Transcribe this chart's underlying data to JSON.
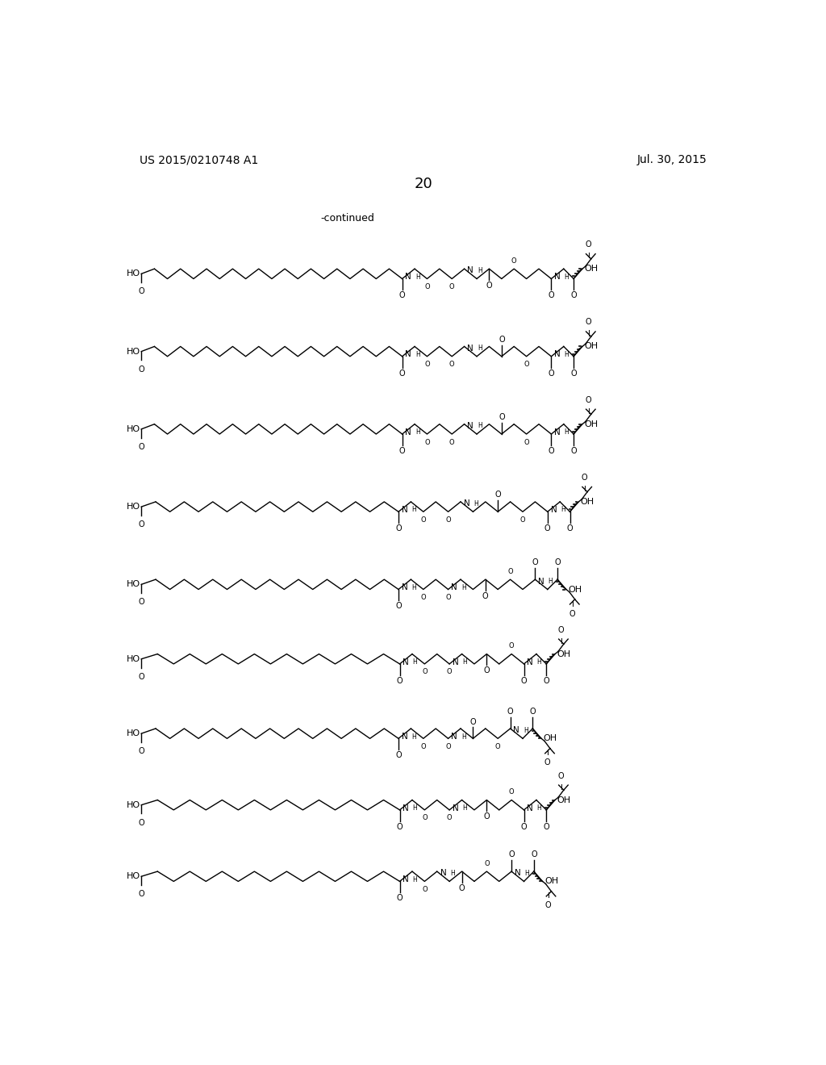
{
  "header_left": "US 2015/0210748 A1",
  "header_right": "Jul. 30, 2015",
  "page_number": "20",
  "continued_label": "-continued",
  "background_color": "#ffffff",
  "text_color": "#000000",
  "font_size_header": 10,
  "font_size_page": 13,
  "font_size_label": 9,
  "font_size_atom": 8.5,
  "n_structures": 9,
  "line_width": 1.0,
  "fa_chain_segs": [
    20,
    20,
    20,
    18,
    18,
    16,
    18,
    16,
    16
  ],
  "peg_variants": [
    {
      "peg1": 4,
      "peg2": 4,
      "spacer": 2
    },
    {
      "peg1": 4,
      "peg2": 3,
      "spacer": 3
    },
    {
      "peg1": 4,
      "peg2": 3,
      "spacer": 3
    },
    {
      "peg1": 4,
      "peg2": 3,
      "spacer": 3
    },
    {
      "peg1": 3,
      "peg2": 3,
      "spacer": 3
    },
    {
      "peg1": 3,
      "peg2": 2,
      "spacer": 3
    },
    {
      "peg1": 3,
      "peg2": 2,
      "spacer": 2
    },
    {
      "peg1": 3,
      "peg2": 2,
      "spacer": 3
    },
    {
      "peg1": 2,
      "peg2": 3,
      "spacer": 2
    }
  ]
}
